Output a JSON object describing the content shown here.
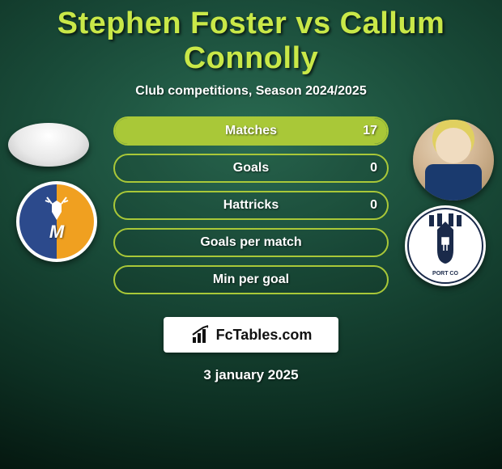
{
  "title": "Stephen Foster vs Callum Connolly",
  "subtitle": "Club competitions, Season 2024/2025",
  "player_left": {
    "name": "Stephen Foster"
  },
  "player_right": {
    "name": "Callum Connolly"
  },
  "club_left": {
    "name": "Mansfield Town",
    "primary": "#2c4a8c",
    "secondary": "#f0a020"
  },
  "club_right": {
    "name": "Stockport County"
  },
  "bars": {
    "bar_border_color": "#a9c838",
    "bar_fill_color": "#a9c838",
    "label_color": "#ffffff",
    "value_color": "#ffffff",
    "rows": [
      {
        "label": "Matches",
        "left_val": "",
        "right_val": "17",
        "left_pct": 0,
        "right_pct": 100
      },
      {
        "label": "Goals",
        "left_val": "",
        "right_val": "0",
        "left_pct": 0,
        "right_pct": 0
      },
      {
        "label": "Hattricks",
        "left_val": "",
        "right_val": "0",
        "left_pct": 0,
        "right_pct": 0
      },
      {
        "label": "Goals per match",
        "left_val": "",
        "right_val": "",
        "left_pct": 0,
        "right_pct": 0
      },
      {
        "label": "Min per goal",
        "left_val": "",
        "right_val": "",
        "left_pct": 0,
        "right_pct": 0
      }
    ]
  },
  "logo": {
    "text": "FcTables.com"
  },
  "date": "3 january 2025",
  "colors": {
    "title": "#c9e848",
    "text": "#ffffff",
    "bg_inner": "#2a6b52",
    "bg_outer": "#051810"
  }
}
